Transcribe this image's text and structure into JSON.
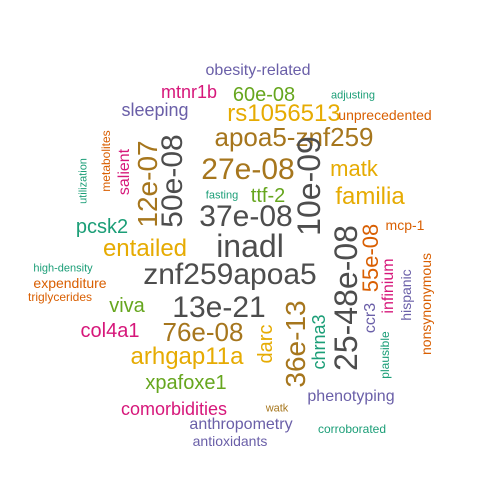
{
  "colors": {
    "gray": "#4d4d4d",
    "purple": "#6a5fa8",
    "green": "#1b9e77",
    "orange": "#d95f02",
    "magenta": "#d6177a",
    "olive": "#66a61e",
    "gold": "#e6ab02",
    "brown": "#a6761d"
  },
  "words": [
    {
      "text": "obesity-related",
      "color": "purple"
    },
    {
      "text": "adjusting",
      "color": "green"
    },
    {
      "text": "mtnr1b",
      "color": "magenta"
    },
    {
      "text": "60e-08",
      "color": "olive"
    },
    {
      "text": "sleeping",
      "color": "purple"
    },
    {
      "text": "rs1056513",
      "color": "gold"
    },
    {
      "text": "unprecedented",
      "color": "orange"
    },
    {
      "text": "apoa5-znf259",
      "color": "brown"
    },
    {
      "text": "metabolites",
      "color": "orange"
    },
    {
      "text": "utilization",
      "color": "green"
    },
    {
      "text": "salient",
      "color": "magenta"
    },
    {
      "text": "12e-07",
      "color": "brown"
    },
    {
      "text": "50e-08",
      "color": "gray"
    },
    {
      "text": "27e-08",
      "color": "brown"
    },
    {
      "text": "10e-09",
      "color": "gray"
    },
    {
      "text": "matk",
      "color": "gold"
    },
    {
      "text": "fasting",
      "color": "green"
    },
    {
      "text": "ttf-2",
      "color": "olive"
    },
    {
      "text": "familia",
      "color": "gold"
    },
    {
      "text": "37e-08",
      "color": "gray"
    },
    {
      "text": "mcp-1",
      "color": "orange"
    },
    {
      "text": "pcsk2",
      "color": "green"
    },
    {
      "text": "entailed",
      "color": "gold"
    },
    {
      "text": "inadl",
      "color": "gray"
    },
    {
      "text": "25-48e-08",
      "color": "gray"
    },
    {
      "text": "55e-08",
      "color": "orange"
    },
    {
      "text": "infinium",
      "color": "magenta"
    },
    {
      "text": "nonsynonymous",
      "color": "orange"
    },
    {
      "text": "high-density",
      "color": "green"
    },
    {
      "text": "znf259apoa5",
      "color": "gray"
    },
    {
      "text": "expenditure",
      "color": "orange"
    },
    {
      "text": "triglycerides",
      "color": "orange"
    },
    {
      "text": "hispanic",
      "color": "purple"
    },
    {
      "text": "ccr3",
      "color": "purple"
    },
    {
      "text": "viva",
      "color": "olive"
    },
    {
      "text": "13e-21",
      "color": "gray"
    },
    {
      "text": "36e-13",
      "color": "brown"
    },
    {
      "text": "col4a1",
      "color": "magenta"
    },
    {
      "text": "76e-08",
      "color": "brown"
    },
    {
      "text": "darc",
      "color": "gold"
    },
    {
      "text": "chrna3",
      "color": "green"
    },
    {
      "text": "plausible",
      "color": "green"
    },
    {
      "text": "arhgap11a",
      "color": "gold"
    },
    {
      "text": "xpafoxe1",
      "color": "olive"
    },
    {
      "text": "phenotyping",
      "color": "purple"
    },
    {
      "text": "comorbidities",
      "color": "magenta"
    },
    {
      "text": "watk",
      "color": "brown"
    },
    {
      "text": "anthropometry",
      "color": "purple"
    },
    {
      "text": "corroborated",
      "color": "green"
    },
    {
      "text": "antioxidants",
      "color": "purple"
    }
  ]
}
